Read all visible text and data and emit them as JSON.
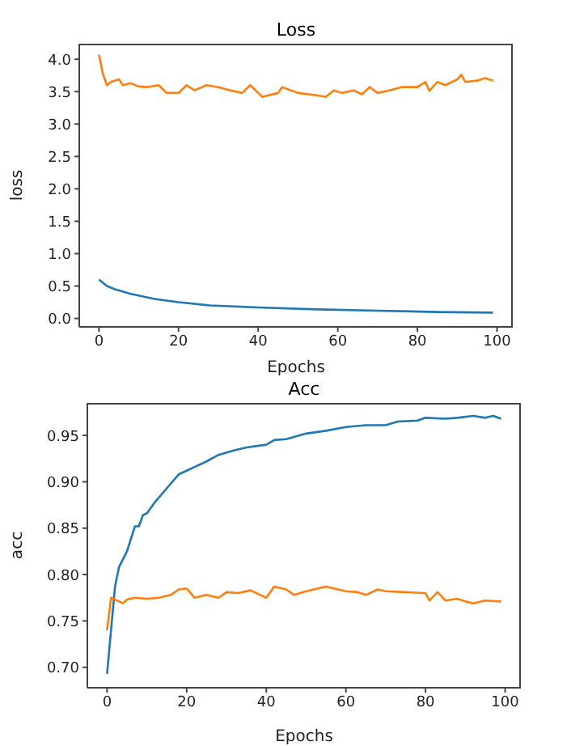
{
  "chart_data": [
    {
      "type": "line",
      "title": "Loss",
      "xlabel": "Epochs",
      "ylabel": "loss",
      "xlim": [
        -4.95,
        103.95
      ],
      "ylim": [
        -0.13,
        4.24
      ],
      "xticks": [
        0,
        20,
        40,
        60,
        80,
        100
      ],
      "yticks": [
        {
          "value": 0,
          "label": "0.0"
        },
        0.5,
        {
          "value": 1,
          "label": "1.0"
        },
        1.5,
        {
          "value": 2,
          "label": "2.0"
        },
        2.5,
        {
          "value": 3,
          "label": "3.0"
        },
        3.5,
        {
          "value": 4,
          "label": "4.0"
        }
      ],
      "marker": "none",
      "line_style": "solid",
      "series": [
        {
          "color": "#1f77b4",
          "x": [
            0,
            2,
            4,
            8,
            14,
            20,
            28,
            40,
            55,
            70,
            85,
            99
          ],
          "values": [
            0.6,
            0.5,
            0.45,
            0.38,
            0.3,
            0.25,
            0.2,
            0.17,
            0.14,
            0.12,
            0.1,
            0.09
          ]
        },
        {
          "color": "#ff7f0e",
          "x": [
            0,
            1,
            2,
            3,
            5,
            6,
            8,
            10,
            12,
            15,
            17,
            20,
            22,
            24,
            27,
            30,
            33,
            36,
            38,
            41,
            45,
            46,
            50,
            55,
            57,
            59,
            61,
            64,
            66,
            68,
            70,
            73,
            76,
            80,
            82,
            83,
            85,
            87,
            90,
            91,
            92,
            95,
            97,
            99
          ],
          "values": [
            4.07,
            3.77,
            3.6,
            3.65,
            3.69,
            3.6,
            3.63,
            3.58,
            3.57,
            3.6,
            3.48,
            3.48,
            3.6,
            3.52,
            3.6,
            3.57,
            3.52,
            3.48,
            3.6,
            3.42,
            3.48,
            3.57,
            3.48,
            3.44,
            3.42,
            3.52,
            3.48,
            3.52,
            3.46,
            3.57,
            3.48,
            3.52,
            3.57,
            3.57,
            3.65,
            3.51,
            3.65,
            3.6,
            3.69,
            3.76,
            3.65,
            3.67,
            3.71,
            3.67
          ]
        }
      ]
    },
    {
      "type": "line",
      "title": "Acc",
      "xlabel": "Epochs",
      "ylabel": "acc",
      "xlim": [
        -4.95,
        103.95
      ],
      "ylim": [
        0.678,
        0.985
      ],
      "xticks": [
        0,
        20,
        40,
        60,
        80,
        100
      ],
      "yticks": [
        {
          "value": 0.7,
          "label": "0.70"
        },
        0.75,
        {
          "value": 0.8,
          "label": "0.80"
        },
        0.85,
        {
          "value": 0.9,
          "label": "0.90"
        },
        0.95
      ],
      "marker": "none",
      "line_style": "solid",
      "series": [
        {
          "color": "#1f77b4",
          "x": [
            0,
            1,
            2,
            3,
            5,
            7,
            8,
            9,
            10,
            12,
            15,
            18,
            20,
            22,
            25,
            28,
            32,
            35,
            40,
            42,
            45,
            50,
            55,
            60,
            65,
            70,
            73,
            78,
            80,
            85,
            88,
            92,
            95,
            97,
            99
          ],
          "values": [
            0.693,
            0.74,
            0.787,
            0.808,
            0.825,
            0.852,
            0.852,
            0.864,
            0.866,
            0.878,
            0.893,
            0.908,
            0.912,
            0.916,
            0.922,
            0.929,
            0.934,
            0.937,
            0.94,
            0.945,
            0.946,
            0.952,
            0.955,
            0.959,
            0.961,
            0.961,
            0.965,
            0.966,
            0.969,
            0.968,
            0.969,
            0.971,
            0.969,
            0.971,
            0.968
          ]
        },
        {
          "color": "#ff7f0e",
          "x": [
            0,
            1,
            2,
            4,
            5,
            7,
            10,
            13,
            16,
            18,
            20,
            22,
            25,
            28,
            30,
            33,
            36,
            40,
            42,
            45,
            47,
            50,
            55,
            58,
            60,
            63,
            65,
            68,
            70,
            75,
            80,
            81,
            83,
            85,
            88,
            90,
            92,
            95,
            99
          ],
          "values": [
            0.74,
            0.775,
            0.773,
            0.769,
            0.773,
            0.775,
            0.774,
            0.775,
            0.778,
            0.784,
            0.785,
            0.775,
            0.778,
            0.775,
            0.781,
            0.78,
            0.783,
            0.775,
            0.787,
            0.784,
            0.778,
            0.782,
            0.787,
            0.784,
            0.782,
            0.781,
            0.778,
            0.784,
            0.782,
            0.781,
            0.78,
            0.772,
            0.781,
            0.772,
            0.774,
            0.771,
            0.769,
            0.772,
            0.771
          ]
        }
      ]
    }
  ]
}
